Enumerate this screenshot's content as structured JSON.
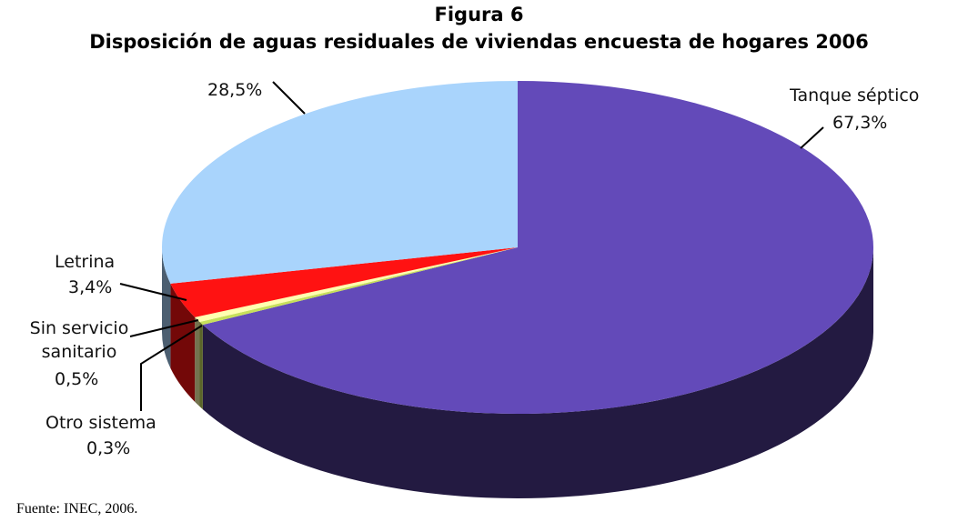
{
  "chart_data": {
    "type": "pie3d",
    "title": "Figura 6",
    "subtitle": "Disposición de aguas residuales de viviendas encuesta de hogares 2006",
    "categories": [
      "Tanque séptico",
      "Otro sistema",
      "Sin servicio sanitario",
      "Letrina",
      null
    ],
    "values": [
      67.3,
      0.3,
      0.5,
      3.4,
      28.5
    ],
    "value_labels": [
      "67,3%",
      "0,3%",
      "0,5%",
      "3,4%",
      "28,5%"
    ],
    "colors": [
      "#634ab9",
      "#c7e05a",
      "#ffffb0",
      "#ff1212",
      "#a9d4fc"
    ],
    "source": "Fuente: INEC, 2006."
  }
}
